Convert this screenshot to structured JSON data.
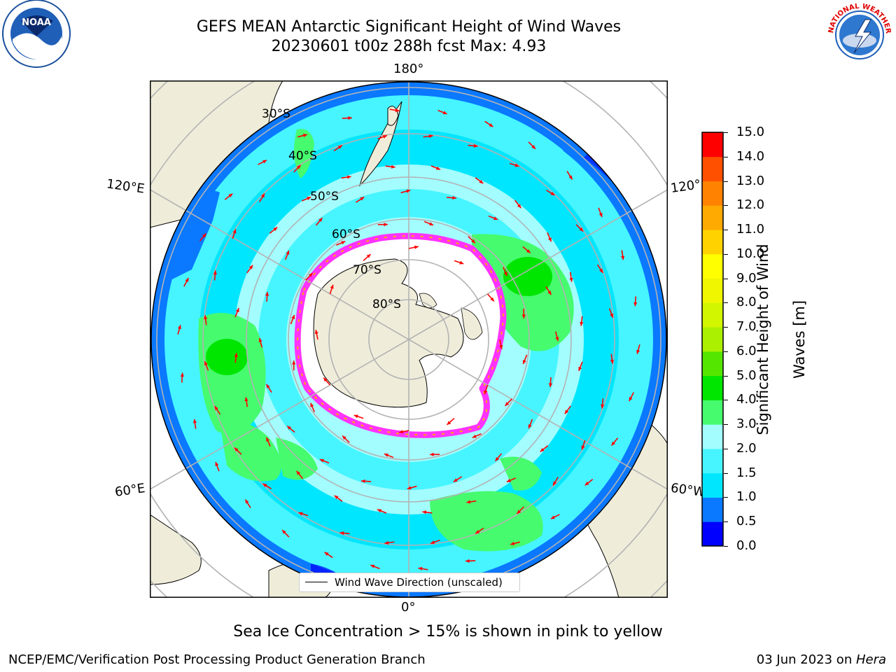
{
  "title": {
    "line1": "GEFS MEAN Antarctic Significant Height of Wind Waves",
    "line2": "20230601 t00z 288h fcst   Max: 4.93"
  },
  "map": {
    "longitude_labels": {
      "top": "180°",
      "bottom": "0°",
      "left_upper": "120°E",
      "left_lower": "60°E",
      "right_upper": "120°",
      "right_lower": "60°W"
    },
    "latitude_labels": [
      "30°S",
      "40°S",
      "50°S",
      "60°S",
      "70°S",
      "80°S"
    ],
    "legend_label": "Wind Wave Direction (unscaled)",
    "colors": {
      "land": "#efedda",
      "ice": "#ffffff",
      "grid": "#b3b3b3",
      "arrow": "#ff0000",
      "sea_ice_edge": "#ff33ff"
    }
  },
  "colorbar": {
    "title_line1": "Significant Height of Wind",
    "title_line2": "Waves [m]",
    "ticks": [
      "0.0",
      "0.5",
      "1.0",
      "1.5",
      "2.0",
      "3.0",
      "4.0",
      "5.0",
      "6.0",
      "7.0",
      "8.0",
      "9.0",
      "10.0",
      "11.0",
      "12.0",
      "13.0",
      "14.0",
      "15.0"
    ],
    "colors": [
      "#0000ff",
      "#0a78ff",
      "#00e6ff",
      "#46f5ff",
      "#a3fdff",
      "#46fb6e",
      "#00e600",
      "#55e600",
      "#aaf000",
      "#d2f500",
      "#f0f500",
      "#ffff00",
      "#ffd200",
      "#ffaa00",
      "#ff8200",
      "#ff5000",
      "#ff0000"
    ]
  },
  "caption": "Sea Ice Concentration > 15% is shown in pink to yellow",
  "footer": {
    "left": "NCEP/EMC/Verification Post Processing Product Generation Branch",
    "right_date": "03 Jun 2023 on ",
    "right_host": "Hera"
  },
  "logos": {
    "noaa": "NOAA",
    "nws": "NATIONAL WEATHER SERVICE"
  }
}
